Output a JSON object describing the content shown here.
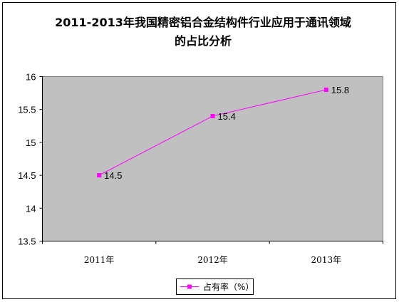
{
  "chart_data": {
    "type": "line",
    "title_lines": [
      "2011-2013年我国精密铝合金结构件行业应用于通讯领域",
      "的占比分析"
    ],
    "categories": [
      "2011年",
      "2012年",
      "2013年"
    ],
    "series": [
      {
        "name": "占有率（%）",
        "values": [
          14.5,
          15.4,
          15.8
        ],
        "data_labels": [
          "14.5",
          "15.4",
          "15.8"
        ],
        "color": "#ff00ff"
      }
    ],
    "y_ticks": [
      "13.5",
      "14",
      "14.5",
      "15",
      "15.5",
      "16"
    ],
    "ylim": [
      13.5,
      16
    ],
    "plot_background": "#c0c0c0",
    "grid": false,
    "legend_position": "bottom"
  }
}
